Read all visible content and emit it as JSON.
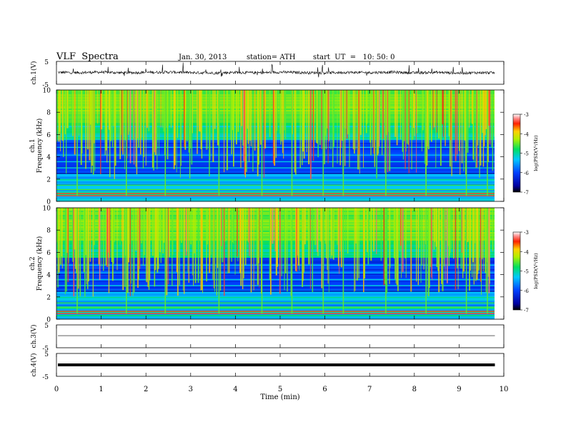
{
  "header": {
    "title": "VLF  Spectra",
    "date": "Jan. 30, 2013",
    "station": "station= ATH",
    "start": "start  UT  =   10: 50: 0"
  },
  "chart_data": [
    {
      "type": "line",
      "panel": "ch1-waveform",
      "ylabel": "ch.1(V)",
      "yticks": [
        "5",
        "-5"
      ],
      "ylim": [
        -5,
        5
      ],
      "xlim": [
        0,
        10
      ],
      "x": [
        0,
        0.5,
        1,
        1.5,
        2,
        2.5,
        3,
        3.5,
        4,
        4.5,
        5,
        5.5,
        6,
        6.5,
        7,
        7.5,
        8,
        8.5,
        9,
        9.5,
        9.8
      ],
      "values": [
        0.2,
        0.1,
        0.3,
        0.0,
        0.2,
        0.3,
        0.1,
        -0.1,
        0.2,
        0.0,
        0.3,
        0.1,
        0.0,
        0.2,
        0.1,
        0.3,
        0.0,
        0.2,
        -0.1,
        0.1,
        0.0
      ],
      "grid": false
    },
    {
      "type": "heatmap",
      "panel": "ch1-spectrogram",
      "ylabel": "ch.1\nFrequency (kHz)",
      "ytick_labels": [
        "0",
        "2",
        "4",
        "6",
        "8",
        "10"
      ],
      "ylim": [
        0,
        10
      ],
      "xlim": [
        0,
        10
      ],
      "colorbar": {
        "label": "log(PSD(V²/Hz)",
        "ticks": [
          "-3",
          "-4",
          "-5",
          "-6",
          "-7"
        ],
        "range": [
          -7,
          -3
        ]
      }
    },
    {
      "type": "heatmap",
      "panel": "ch2-spectrogram",
      "ylabel": "ch.2\nFrequency (kHz)",
      "ytick_labels": [
        "0",
        "2",
        "4",
        "6",
        "8",
        "10"
      ],
      "ylim": [
        0,
        10
      ],
      "xlim": [
        0,
        10
      ],
      "colorbar": {
        "label": "log(PSD(V²/Hz)",
        "ticks": [
          "-3",
          "-4",
          "-5",
          "-6",
          "-7"
        ],
        "range": [
          -7,
          -3
        ]
      }
    },
    {
      "type": "line",
      "panel": "ch3-waveform",
      "ylabel": "ch.3(V)",
      "yticks": [
        "5",
        "-5"
      ],
      "ylim": [
        -5,
        5
      ],
      "xlim": [
        0,
        10
      ],
      "x": [
        0,
        9.8
      ],
      "values": [
        0.3,
        0.3
      ]
    },
    {
      "type": "line",
      "panel": "ch4-waveform",
      "ylabel": "ch.4(V)",
      "yticks": [
        "5",
        "-5"
      ],
      "ylim": [
        -5,
        5
      ],
      "xlim": [
        0,
        10
      ],
      "x": [
        0,
        9.8
      ],
      "values": [
        0.0,
        0.0
      ]
    }
  ],
  "xaxis": {
    "label": "Time  (min)",
    "tick_labels": [
      "0",
      "1",
      "2",
      "3",
      "4",
      "5",
      "6",
      "7",
      "8",
      "9",
      "10"
    ]
  }
}
